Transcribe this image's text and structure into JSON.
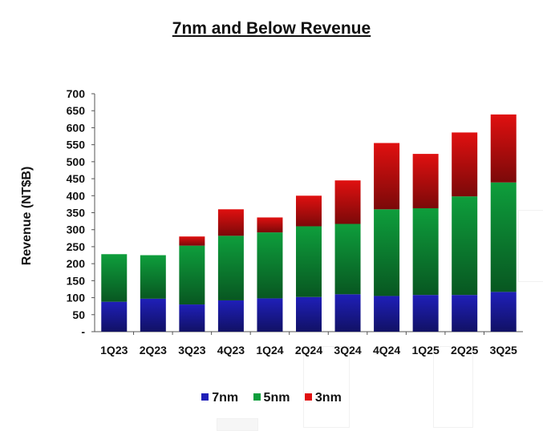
{
  "chart_data": {
    "type": "bar",
    "stacked": true,
    "title": "7nm and Below Revenue",
    "xlabel": "",
    "ylabel": "Revenue (NT$B)",
    "ylim": [
      0,
      700
    ],
    "yticks": [
      0,
      50,
      100,
      150,
      200,
      250,
      300,
      350,
      400,
      450,
      500,
      550,
      600,
      650,
      700
    ],
    "ytick_labels": [
      "-",
      "50",
      "100",
      "150",
      "200",
      "250",
      "300",
      "350",
      "400",
      "450",
      "500",
      "550",
      "600",
      "650",
      "700"
    ],
    "categories": [
      "1Q23",
      "2Q23",
      "3Q23",
      "4Q23",
      "1Q24",
      "2Q24",
      "3Q24",
      "4Q24",
      "1Q25",
      "2Q25",
      "3Q25"
    ],
    "series": [
      {
        "name": "7nm",
        "color": "#1f1fb8",
        "values": [
          88,
          97,
          80,
          92,
          98,
          102,
          110,
          105,
          108,
          108,
          117
        ]
      },
      {
        "name": "5nm",
        "color": "#0e9e3c",
        "values": [
          140,
          128,
          173,
          190,
          194,
          208,
          207,
          255,
          255,
          290,
          322
        ]
      },
      {
        "name": "3nm",
        "color": "#e01010",
        "values": [
          0,
          0,
          27,
          78,
          44,
          90,
          128,
          195,
          160,
          188,
          200
        ]
      }
    ],
    "legend_position": "bottom-center",
    "grid": false
  }
}
